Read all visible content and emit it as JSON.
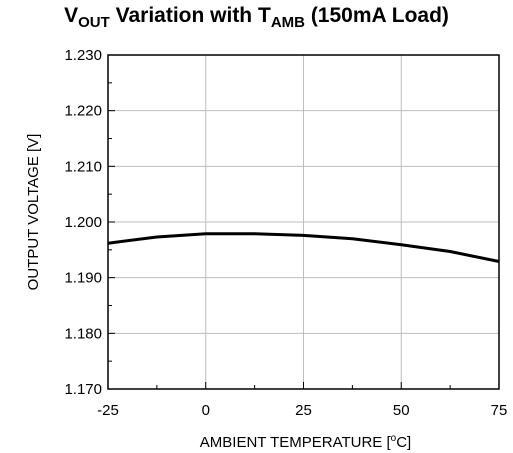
{
  "chart_data": {
    "type": "line",
    "title": {
      "parts": [
        {
          "text": "V",
          "sub": false
        },
        {
          "text": "OUT",
          "sub": true
        },
        {
          "text": " Variation with T",
          "sub": false
        },
        {
          "text": "AMB",
          "sub": true
        },
        {
          "text": " (150mA Load)",
          "sub": false
        }
      ]
    },
    "xlabel": "AMBIENT TEMPERATURE [",
    "xlabel_unit": "o",
    "xlabel_tail": "C]",
    "ylabel": "OUTPUT  VOLTAGE [V]",
    "xlim": [
      -25,
      75
    ],
    "ylim": [
      1.17,
      1.23
    ],
    "x_ticks": [
      -25,
      0,
      25,
      50,
      75
    ],
    "x_tick_labels": [
      "-25",
      "0",
      "25",
      "50",
      "75"
    ],
    "x_minor_ticks": [
      -12.5,
      12.5,
      37.5,
      62.5
    ],
    "y_ticks": [
      1.17,
      1.18,
      1.19,
      1.2,
      1.21,
      1.22,
      1.23
    ],
    "y_tick_labels": [
      "1.170",
      "1.180",
      "1.190",
      "1.200",
      "1.210",
      "1.220",
      "1.230"
    ],
    "y_minor_ticks": [
      1.175,
      1.185,
      1.195,
      1.205,
      1.215,
      1.225
    ],
    "grid": true,
    "series": [
      {
        "x": [
          -25,
          -12.5,
          0,
          12.5,
          25,
          37.5,
          50,
          62.5,
          75
        ],
        "y": [
          1.1962,
          1.1973,
          1.1979,
          1.1979,
          1.1976,
          1.197,
          1.1959,
          1.1947,
          1.1929
        ],
        "color": "#000000"
      }
    ]
  }
}
